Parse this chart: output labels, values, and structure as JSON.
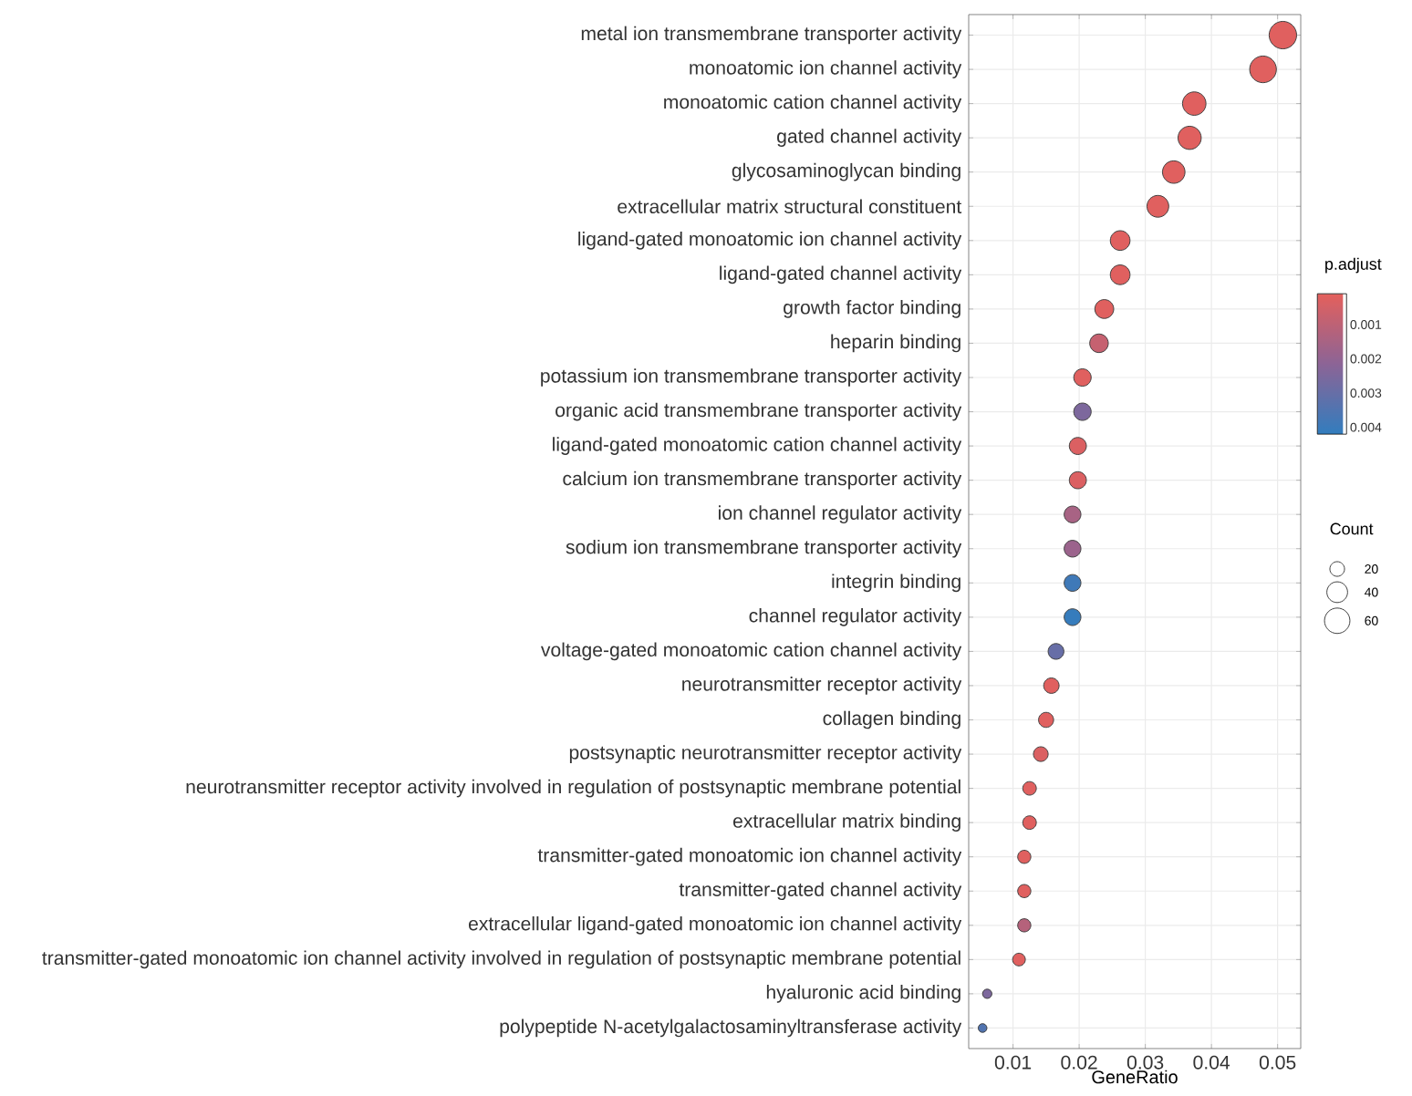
{
  "chart_data": {
    "type": "bubble",
    "orientation": "horizontal",
    "xlabel": "GeneRatio",
    "clabel": "p.adjust",
    "legend_title": "Count",
    "marker": "circle",
    "grid": true,
    "categories": [
      "metal ion transmembrane transporter activity",
      "monoatomic ion channel activity",
      "monoatomic cation channel activity",
      "gated channel activity",
      "glycosaminoglycan binding",
      "extracellular matrix structural constituent",
      "ligand-gated monoatomic ion channel activity",
      "ligand-gated channel activity",
      "growth factor binding",
      "heparin binding",
      "potassium ion transmembrane transporter activity",
      "organic acid transmembrane transporter activity",
      "ligand-gated monoatomic cation channel activity",
      "calcium ion transmembrane transporter activity",
      "ion channel regulator activity",
      "sodium ion transmembrane transporter activity",
      "integrin binding",
      "channel regulator activity",
      "voltage-gated monoatomic cation channel activity",
      "neurotransmitter receptor activity",
      "collagen binding",
      "postsynaptic neurotransmitter receptor activity",
      "neurotransmitter receptor activity involved in regulation of postsynaptic membrane potential",
      "extracellular matrix binding",
      "transmitter-gated monoatomic ion channel activity",
      "transmitter-gated channel activity",
      "extracellular ligand-gated monoatomic ion channel activity",
      "transmitter-gated monoatomic ion channel activity involved in regulation of postsynaptic membrane potential",
      "hyaluronic acid binding",
      "polypeptide N-acetylgalactosaminyltransferase activity"
    ],
    "values": [
      0.0508,
      0.0478,
      0.0374,
      0.0367,
      0.0343,
      0.0319,
      0.0262,
      0.0262,
      0.0238,
      0.023,
      0.0205,
      0.0205,
      0.0198,
      0.0198,
      0.019,
      0.019,
      0.019,
      0.019,
      0.0165,
      0.0158,
      0.015,
      0.0142,
      0.0125,
      0.0125,
      0.0117,
      0.0117,
      0.0117,
      0.0109,
      0.0061,
      0.0054
    ],
    "sizes": [
      70,
      66,
      51,
      50,
      47,
      44,
      36,
      36,
      33,
      32,
      28,
      28,
      27,
      27,
      26,
      26,
      26,
      26,
      23,
      22,
      21,
      20,
      17,
      17,
      16,
      16,
      16,
      15,
      8,
      7
    ],
    "cvalues": [
      0.0002,
      0.0002,
      0.0002,
      0.0002,
      0.0002,
      0.0002,
      0.0002,
      0.0002,
      0.0002,
      0.0008,
      0.0002,
      0.0025,
      0.0003,
      0.0003,
      0.0015,
      0.0018,
      0.0039,
      0.0041,
      0.003,
      0.0002,
      0.0002,
      0.0003,
      0.0002,
      0.0002,
      0.0002,
      0.0002,
      0.0012,
      0.0002,
      0.0025,
      0.0035
    ],
    "size_legend": [
      20,
      40,
      60
    ],
    "xlim": [
      0.0033,
      0.0535
    ],
    "xticks": [
      0.01,
      0.02,
      0.03,
      0.04,
      0.05
    ],
    "clim": [
      0.0001,
      0.0042
    ],
    "cticks": [
      0.001,
      0.002,
      0.003,
      0.004
    ]
  }
}
